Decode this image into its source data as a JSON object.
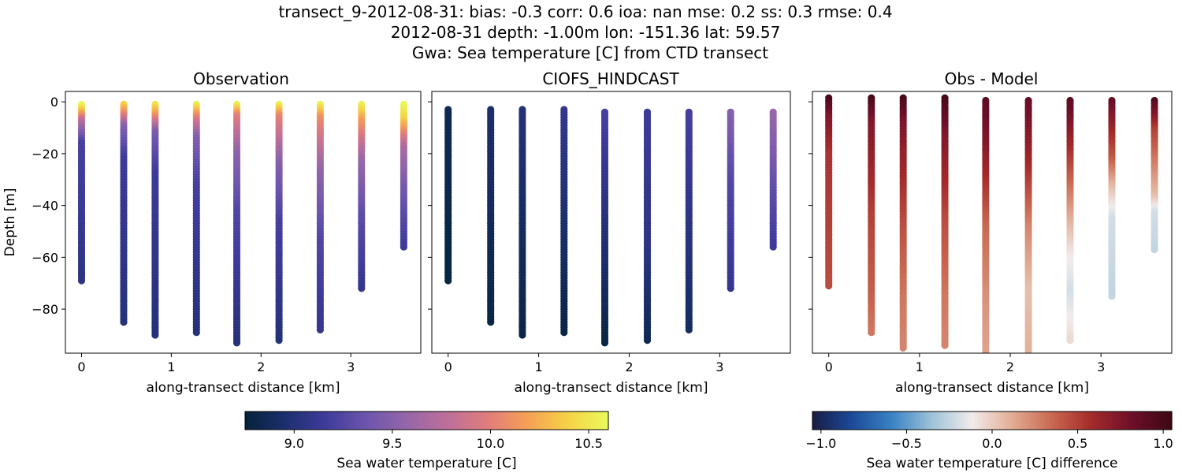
{
  "figure": {
    "title_lines": [
      "transect_9-2012-08-31: bias: -0.3  corr: 0.6  ioa: nan  mse: 0.2  ss: 0.3  rmse: 0.4",
      "2012-08-31 depth: -1.00m lon: -151.36 lat: 59.57",
      "Gwa: Sea temperature [C] from CTD transect"
    ]
  },
  "chart_data": [
    {
      "type": "scatter",
      "title": "Observation",
      "xlabel": "along-transect distance [km]",
      "ylabel": "Depth [m]",
      "xlim": [
        -0.18,
        3.78
      ],
      "ylim": [
        -97,
        4
      ],
      "xticks": [
        0,
        1,
        2,
        3
      ],
      "yticks": [
        0,
        -20,
        -40,
        -60,
        -80
      ],
      "grid": false,
      "colormap": "thermal",
      "clim": [
        8.75,
        10.6
      ],
      "stations": [
        {
          "x": 0.0,
          "depth_min": -1,
          "depth_max": -69,
          "profile": [
            [
              0,
              10.6
            ],
            [
              0.04,
              10.3
            ],
            [
              0.09,
              9.8
            ],
            [
              0.22,
              9.2
            ],
            [
              1,
              9.05
            ]
          ]
        },
        {
          "x": 0.47,
          "depth_min": -1,
          "depth_max": -85,
          "profile": [
            [
              0,
              10.4
            ],
            [
              0.05,
              10.0
            ],
            [
              0.1,
              9.5
            ],
            [
              0.25,
              9.15
            ],
            [
              1,
              9.0
            ]
          ]
        },
        {
          "x": 0.82,
          "depth_min": -1,
          "depth_max": -90,
          "profile": [
            [
              0,
              10.5
            ],
            [
              0.05,
              10.1
            ],
            [
              0.12,
              9.45
            ],
            [
              0.3,
              9.15
            ],
            [
              1,
              9.0
            ]
          ]
        },
        {
          "x": 1.28,
          "depth_min": -1,
          "depth_max": -89,
          "profile": [
            [
              0,
              10.55
            ],
            [
              0.06,
              10.0
            ],
            [
              0.14,
              9.5
            ],
            [
              0.35,
              9.2
            ],
            [
              1,
              9.0
            ]
          ]
        },
        {
          "x": 1.73,
          "depth_min": -1,
          "depth_max": -93,
          "profile": [
            [
              0,
              10.55
            ],
            [
              0.05,
              10.0
            ],
            [
              0.2,
              9.55
            ],
            [
              0.45,
              9.25
            ],
            [
              1,
              9.0
            ]
          ]
        },
        {
          "x": 2.2,
          "depth_min": -1,
          "depth_max": -92,
          "profile": [
            [
              0,
              10.55
            ],
            [
              0.05,
              10.05
            ],
            [
              0.25,
              9.5
            ],
            [
              0.5,
              9.2
            ],
            [
              1,
              9.0
            ]
          ]
        },
        {
          "x": 2.66,
          "depth_min": -1,
          "depth_max": -88,
          "profile": [
            [
              0,
              10.55
            ],
            [
              0.06,
              10.1
            ],
            [
              0.3,
              9.55
            ],
            [
              0.6,
              9.25
            ],
            [
              1,
              9.1
            ]
          ]
        },
        {
          "x": 3.12,
          "depth_min": -1,
          "depth_max": -72,
          "profile": [
            [
              0,
              10.55
            ],
            [
              0.08,
              10.2
            ],
            [
              0.3,
              9.6
            ],
            [
              0.6,
              9.3
            ],
            [
              1,
              9.1
            ]
          ]
        },
        {
          "x": 3.59,
          "depth_min": -1,
          "depth_max": -56,
          "profile": [
            [
              0,
              10.6
            ],
            [
              0.1,
              10.4
            ],
            [
              0.3,
              9.7
            ],
            [
              0.6,
              9.4
            ],
            [
              1,
              9.15
            ]
          ]
        }
      ]
    },
    {
      "type": "scatter",
      "title": "CIOFS_HINDCAST",
      "xlabel": "along-transect distance [km]",
      "ylabel": "",
      "xlim": [
        -0.18,
        3.78
      ],
      "ylim": [
        -97,
        4
      ],
      "xticks": [
        0,
        1,
        2,
        3
      ],
      "yticks": [
        0,
        -20,
        -40,
        -60,
        -80
      ],
      "grid": false,
      "colormap": "thermal",
      "clim": [
        8.75,
        10.6
      ],
      "stations": [
        {
          "x": 0.0,
          "depth_min": -3,
          "depth_max": -69,
          "profile": [
            [
              0,
              8.85
            ],
            [
              1,
              8.78
            ]
          ]
        },
        {
          "x": 0.47,
          "depth_min": -3,
          "depth_max": -85,
          "profile": [
            [
              0,
              8.95
            ],
            [
              1,
              8.8
            ]
          ]
        },
        {
          "x": 0.82,
          "depth_min": -3,
          "depth_max": -90,
          "profile": [
            [
              0,
              9.0
            ],
            [
              1,
              8.8
            ]
          ]
        },
        {
          "x": 1.28,
          "depth_min": -3,
          "depth_max": -89,
          "profile": [
            [
              0,
              9.1
            ],
            [
              0.5,
              8.95
            ],
            [
              1,
              8.8
            ]
          ]
        },
        {
          "x": 1.73,
          "depth_min": -4,
          "depth_max": -93,
          "profile": [
            [
              0,
              9.2
            ],
            [
              0.5,
              9.0
            ],
            [
              1,
              8.8
            ]
          ]
        },
        {
          "x": 2.2,
          "depth_min": -4,
          "depth_max": -92,
          "profile": [
            [
              0,
              9.15
            ],
            [
              0.6,
              9.05
            ],
            [
              1,
              8.85
            ]
          ]
        },
        {
          "x": 2.66,
          "depth_min": -4,
          "depth_max": -88,
          "profile": [
            [
              0,
              9.2
            ],
            [
              0.5,
              9.05
            ],
            [
              1,
              8.9
            ]
          ]
        },
        {
          "x": 3.12,
          "depth_min": -4,
          "depth_max": -72,
          "profile": [
            [
              0,
              9.5
            ],
            [
              0.4,
              9.25
            ],
            [
              1,
              9.1
            ]
          ]
        },
        {
          "x": 3.59,
          "depth_min": -4,
          "depth_max": -56,
          "profile": [
            [
              0,
              9.6
            ],
            [
              0.5,
              9.35
            ],
            [
              1,
              9.15
            ]
          ]
        }
      ]
    },
    {
      "type": "scatter",
      "title": "Obs - Model",
      "xlabel": "along-transect distance [km]",
      "ylabel": "",
      "xlim": [
        -0.18,
        3.78
      ],
      "ylim": [
        -97,
        4
      ],
      "xticks": [
        0,
        1,
        2,
        3
      ],
      "yticks": [
        0,
        -20,
        -40,
        -60,
        -80
      ],
      "grid": false,
      "colormap": "balance",
      "clim": [
        -1.05,
        1.05
      ],
      "stations": [
        {
          "x": 0.0,
          "depth_min": 1.5,
          "depth_max": -71,
          "profile": [
            [
              0,
              1.0
            ],
            [
              0.1,
              0.75
            ],
            [
              0.3,
              0.55
            ],
            [
              1,
              0.45
            ]
          ]
        },
        {
          "x": 0.47,
          "depth_min": 1.5,
          "depth_max": -89,
          "profile": [
            [
              0,
              1.0
            ],
            [
              0.1,
              0.75
            ],
            [
              0.5,
              0.5
            ],
            [
              0.85,
              0.38
            ],
            [
              1,
              0.3
            ]
          ]
        },
        {
          "x": 0.82,
          "depth_min": 1.5,
          "depth_max": -95,
          "profile": [
            [
              0,
              1.0
            ],
            [
              0.1,
              0.75
            ],
            [
              0.5,
              0.45
            ],
            [
              0.8,
              0.3
            ],
            [
              1,
              0.25
            ]
          ]
        },
        {
          "x": 1.28,
          "depth_min": 1.5,
          "depth_max": -94,
          "profile": [
            [
              0,
              1.0
            ],
            [
              0.15,
              0.75
            ],
            [
              0.5,
              0.45
            ],
            [
              0.8,
              0.3
            ],
            [
              1,
              0.25
            ]
          ]
        },
        {
          "x": 1.73,
          "depth_min": 0.5,
          "depth_max": -97,
          "profile": [
            [
              0,
              0.9
            ],
            [
              0.2,
              0.7
            ],
            [
              0.5,
              0.35
            ],
            [
              0.8,
              0.2
            ],
            [
              1,
              0.15
            ]
          ]
        },
        {
          "x": 2.2,
          "depth_min": 0.5,
          "depth_max": -97,
          "profile": [
            [
              0,
              0.85
            ],
            [
              0.25,
              0.6
            ],
            [
              0.5,
              0.25
            ],
            [
              0.75,
              0.05
            ],
            [
              1,
              0.1
            ]
          ]
        },
        {
          "x": 2.66,
          "depth_min": 0.5,
          "depth_max": -92,
          "profile": [
            [
              0,
              0.9
            ],
            [
              0.25,
              0.5
            ],
            [
              0.5,
              0.1
            ],
            [
              0.65,
              -0.1
            ],
            [
              0.8,
              -0.2
            ],
            [
              1,
              -0.05
            ]
          ]
        },
        {
          "x": 3.12,
          "depth_min": 0.5,
          "depth_max": -75,
          "profile": [
            [
              0,
              0.85
            ],
            [
              0.3,
              0.4
            ],
            [
              0.45,
              0.05
            ],
            [
              0.6,
              -0.2
            ],
            [
              1,
              -0.25
            ]
          ]
        },
        {
          "x": 3.59,
          "depth_min": 0.5,
          "depth_max": -57,
          "profile": [
            [
              0,
              0.95
            ],
            [
              0.2,
              0.5
            ],
            [
              0.45,
              0.25
            ],
            [
              0.65,
              0.05
            ],
            [
              0.75,
              -0.2
            ],
            [
              1,
              -0.25
            ]
          ]
        }
      ]
    }
  ],
  "colorbars": [
    {
      "label": "Sea water temperature [C]",
      "ticks": [
        9.0,
        9.5,
        10.0,
        10.5
      ],
      "tick_labels": [
        "9.0",
        "9.5",
        "10.0",
        "10.5"
      ],
      "clim": [
        8.75,
        10.6
      ],
      "colormap": "thermal"
    },
    {
      "label": "Sea water temperature [C] difference",
      "ticks": [
        -1.0,
        -0.5,
        0.0,
        0.5,
        1.0
      ],
      "tick_labels": [
        "−1.0",
        "−0.5",
        "0.0",
        "0.5",
        "1.0"
      ],
      "clim": [
        -1.05,
        1.05
      ],
      "colormap": "balance"
    }
  ],
  "colormaps": {
    "thermal": [
      "#04233a",
      "#1d2f6e",
      "#3f3b9c",
      "#6c55ad",
      "#9566a9",
      "#bd6f9a",
      "#e07c7c",
      "#f5a055",
      "#f6d247",
      "#e8fa5b"
    ],
    "balance": [
      "#181c43",
      "#1d4a9a",
      "#3a83c4",
      "#9ec3d8",
      "#f1ecec",
      "#e2ac95",
      "#c96850",
      "#a42a2a",
      "#6e0f2a",
      "#3c0912"
    ]
  }
}
